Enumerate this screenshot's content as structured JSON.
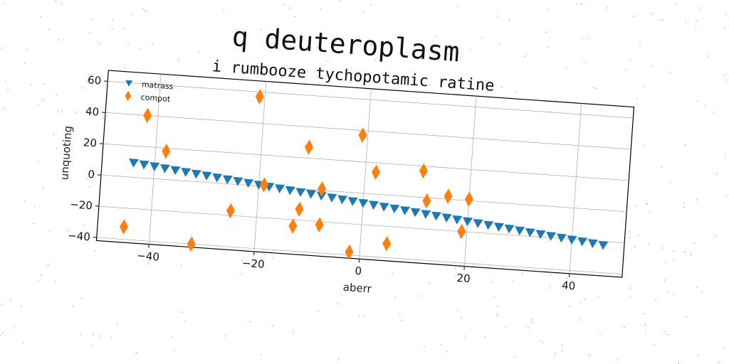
{
  "chart_data": {
    "type": "scatter",
    "title": "q deuteroplasm",
    "subtitle": "i rumbooze tychopotamic ratine",
    "xlabel": "aberr",
    "ylabel": "unquoting",
    "xlim": [
      -50,
      50
    ],
    "ylim": [
      -42,
      67
    ],
    "xticks": [
      -40,
      -20,
      0,
      20,
      40
    ],
    "yticks": [
      -40,
      -20,
      0,
      20,
      40,
      60
    ],
    "grid": true,
    "legend_position": "top-left",
    "series": [
      {
        "name": "matrass",
        "marker": "triangle-down",
        "color": "#1f77b4",
        "x": [
          -44,
          -42,
          -40,
          -38,
          -36,
          -34,
          -32,
          -30,
          -28,
          -26,
          -24,
          -22,
          -20,
          -18,
          -16,
          -14,
          -12,
          -10,
          -8,
          -6,
          -4,
          -2,
          0,
          2,
          4,
          6,
          8,
          10,
          12,
          14,
          16,
          18,
          20,
          22,
          24,
          26,
          28,
          30,
          32,
          34,
          36,
          38,
          40,
          42,
          44,
          46
        ],
        "y": [
          9.2,
          8.5,
          7.8,
          7.0,
          6.3,
          5.6,
          4.9,
          4.2,
          3.5,
          2.8,
          2.1,
          1.4,
          0.7,
          0.0,
          -0.7,
          -1.4,
          -2.1,
          -2.8,
          -3.5,
          -4.2,
          -4.9,
          -5.6,
          -6.3,
          -7.0,
          -7.7,
          -8.4,
          -9.1,
          -9.8,
          -10.5,
          -11.2,
          -11.9,
          -12.6,
          -13.3,
          -14.0,
          -14.7,
          -15.4,
          -16.1,
          -16.8,
          -17.5,
          -18.2,
          -18.9,
          -19.6,
          -20.3,
          -21.0,
          -21.7,
          -22.4
        ]
      },
      {
        "name": "compot",
        "marker": "thin-diamond",
        "color": "#ff7f0e",
        "x": [
          -45,
          -42,
          -38,
          -32,
          -25,
          -21,
          -19,
          -13,
          -12,
          -11,
          -8,
          -8,
          -2,
          -1,
          2,
          5,
          11,
          12,
          16,
          19,
          20
        ],
        "y": [
          -32,
          40,
          18,
          -40,
          -17,
          57,
          1,
          -24,
          -13,
          27,
          -22,
          1,
          -38,
          37,
          14,
          -31,
          17,
          -2,
          2,
          -20,
          1
        ]
      }
    ]
  }
}
